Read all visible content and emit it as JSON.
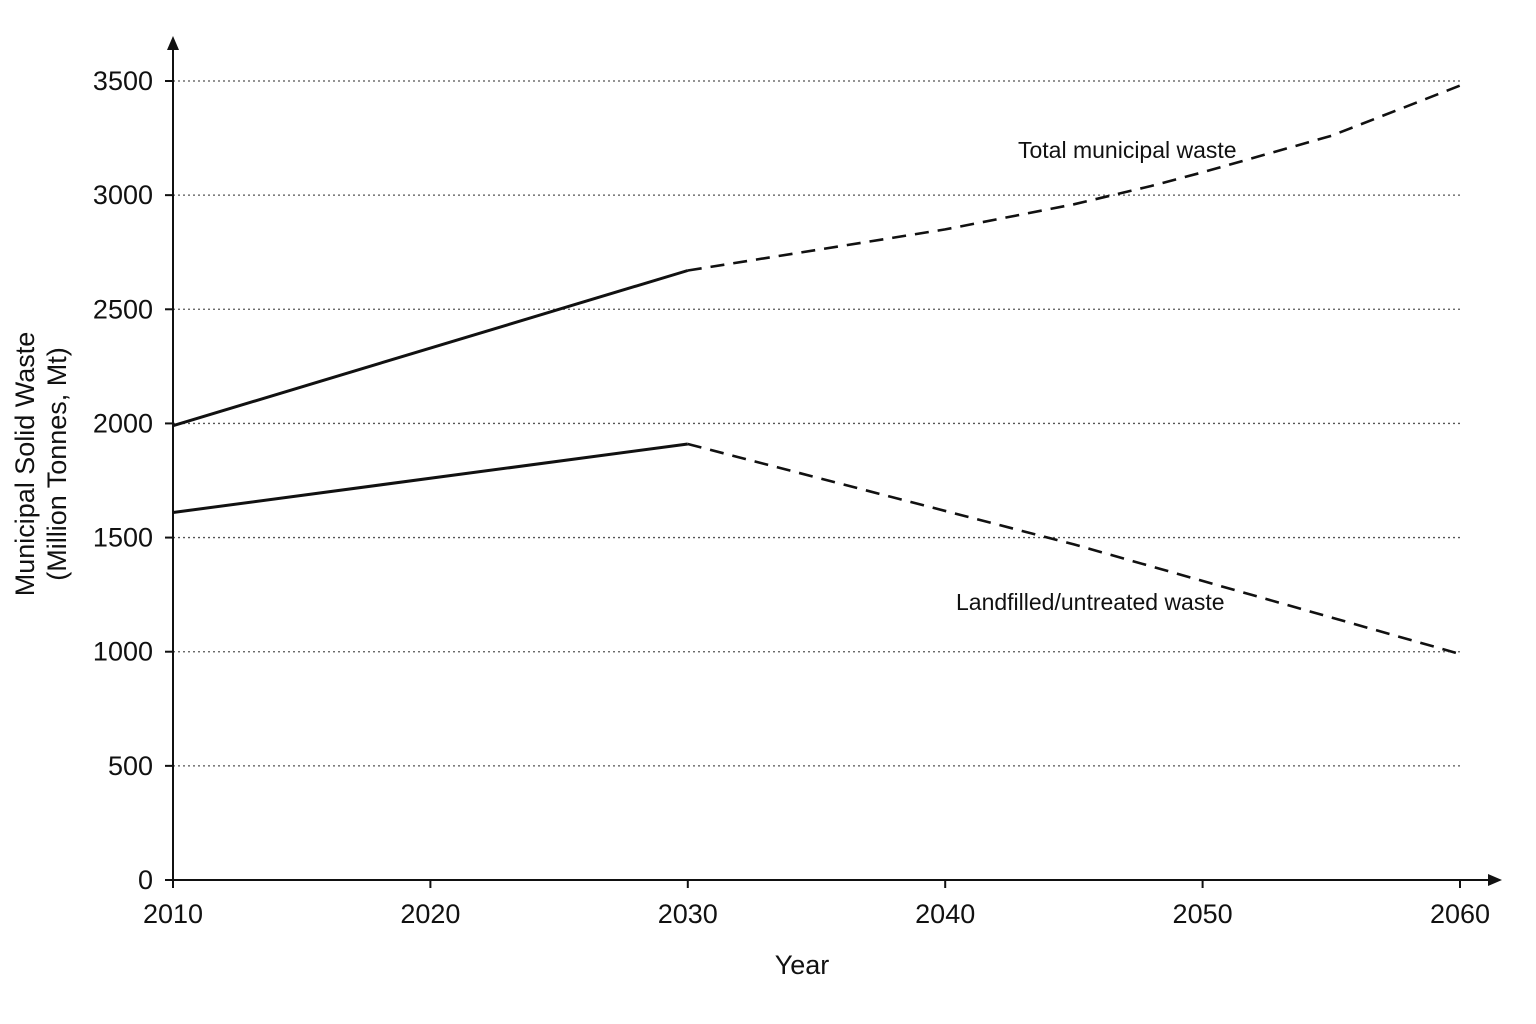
{
  "chart_data": {
    "type": "line",
    "xlabel": "Year",
    "ylabel_line1": "Municipal Solid Waste",
    "ylabel_line2": "(Million Tonnes, Mt)",
    "xlim": [
      2010,
      2060
    ],
    "ylim": [
      0,
      3500
    ],
    "x_ticks": [
      2010,
      2020,
      2030,
      2040,
      2050,
      2060
    ],
    "y_ticks": [
      0,
      500,
      1000,
      1500,
      2000,
      2500,
      3000,
      3500
    ],
    "grid": true,
    "grid_style": "dotted horizontal",
    "projection_start": 2030,
    "series": [
      {
        "name": "Total municipal waste",
        "x": [
          2010,
          2030,
          2040,
          2045,
          2048,
          2050,
          2055,
          2060
        ],
        "y": [
          1990,
          2670,
          2850,
          2960,
          3040,
          3100,
          3260,
          3480
        ]
      },
      {
        "name": "Landfilled/untreated waste",
        "x": [
          2010,
          2030,
          2045,
          2060
        ],
        "y": [
          1610,
          1910,
          1470,
          990
        ]
      }
    ],
    "annotations": [
      {
        "text": "Total municipal waste",
        "series": 0
      },
      {
        "text": "Landfilled/untreated waste",
        "series": 1
      }
    ],
    "colors": {
      "line": "#111111",
      "grid": "#555555",
      "background": "#ffffff"
    }
  }
}
